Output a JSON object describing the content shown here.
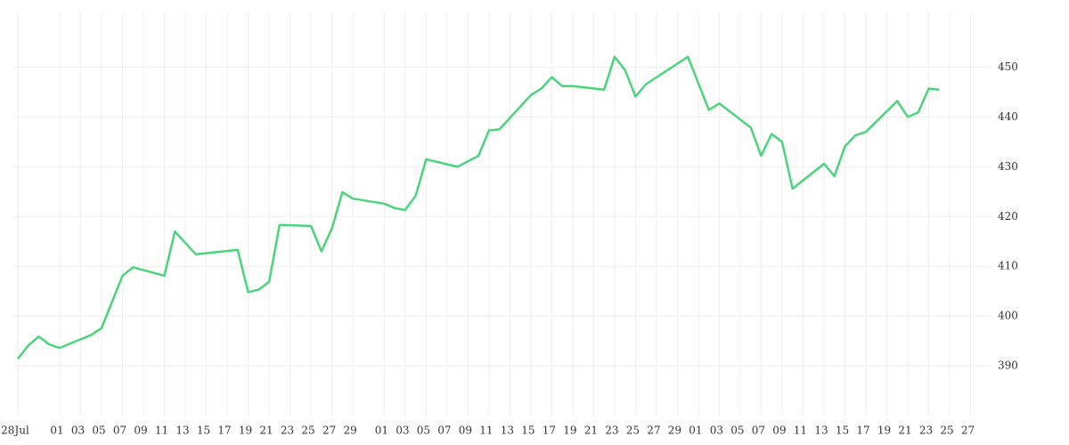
{
  "chart_data": {
    "type": "line",
    "x": [
      "07-28",
      "07-29",
      "07-30",
      "07-31",
      "08-01",
      "08-04",
      "08-05",
      "08-07",
      "08-08",
      "08-11",
      "08-12",
      "08-14",
      "08-18",
      "08-19",
      "08-20",
      "08-21",
      "08-22",
      "08-25",
      "08-26",
      "08-27",
      "08-28",
      "08-29",
      "09-01",
      "09-02",
      "09-03",
      "09-04",
      "09-05",
      "09-08",
      "09-09",
      "09-10",
      "09-11",
      "09-12",
      "09-15",
      "09-16",
      "09-17",
      "09-18",
      "09-19",
      "09-22",
      "09-23",
      "09-24",
      "09-25",
      "09-26",
      "09-30",
      "10-02",
      "10-03",
      "10-06",
      "10-07",
      "10-08",
      "10-09",
      "10-10",
      "10-13",
      "10-14",
      "10-15",
      "10-16",
      "10-17",
      "10-20",
      "10-21",
      "10-22",
      "10-23",
      "10-24"
    ],
    "series": [
      {
        "color": "#4cd47c",
        "values": [
          391.4,
          394.1,
          395.9,
          394.3,
          393.6,
          396.2,
          397.6,
          408.1,
          409.8,
          408.1,
          417.0,
          412.4,
          413.3,
          404.8,
          405.3,
          406.9,
          418.3,
          418.1,
          413.0,
          417.6,
          424.9,
          423.6,
          422.6,
          421.7,
          421.3,
          424.2,
          431.5,
          430.0,
          431.1,
          432.2,
          437.3,
          437.5,
          444.4,
          445.7,
          448.0,
          446.2,
          446.2,
          445.5,
          452.1,
          449.4,
          444.1,
          446.6,
          452.1,
          441.4,
          442.7,
          437.9,
          432.2,
          436.6,
          435.0,
          425.6,
          430.6,
          428.1,
          434.1,
          436.3,
          437.0,
          443.2,
          440.0,
          440.9,
          445.7,
          445.5
        ]
      }
    ],
    "xlim": [
      "07-28",
      "10-29"
    ],
    "xticks": [
      {
        "value": "07-28",
        "label": "28Jul"
      },
      {
        "value": "08-01",
        "label": "01"
      },
      {
        "value": "08-03",
        "label": "03"
      },
      {
        "value": "08-05",
        "label": "05"
      },
      {
        "value": "08-07",
        "label": "07"
      },
      {
        "value": "08-09",
        "label": "09"
      },
      {
        "value": "08-11",
        "label": "11"
      },
      {
        "value": "08-13",
        "label": "13"
      },
      {
        "value": "08-15",
        "label": "15"
      },
      {
        "value": "08-17",
        "label": "17"
      },
      {
        "value": "08-19",
        "label": "19"
      },
      {
        "value": "08-21",
        "label": "21"
      },
      {
        "value": "08-23",
        "label": "23"
      },
      {
        "value": "08-25",
        "label": "25"
      },
      {
        "value": "08-27",
        "label": "27"
      },
      {
        "value": "08-29",
        "label": "29"
      },
      {
        "value": "09-01",
        "label": "01"
      },
      {
        "value": "09-03",
        "label": "03"
      },
      {
        "value": "09-05",
        "label": "05"
      },
      {
        "value": "09-07",
        "label": "07"
      },
      {
        "value": "09-09",
        "label": "09"
      },
      {
        "value": "09-11",
        "label": "11"
      },
      {
        "value": "09-13",
        "label": "13"
      },
      {
        "value": "09-15",
        "label": "15"
      },
      {
        "value": "09-17",
        "label": "17"
      },
      {
        "value": "09-19",
        "label": "19"
      },
      {
        "value": "09-21",
        "label": "21"
      },
      {
        "value": "09-23",
        "label": "23"
      },
      {
        "value": "09-25",
        "label": "25"
      },
      {
        "value": "09-27",
        "label": "27"
      },
      {
        "value": "09-29",
        "label": "29"
      },
      {
        "value": "10-01",
        "label": "01"
      },
      {
        "value": "10-03",
        "label": "03"
      },
      {
        "value": "10-05",
        "label": "05"
      },
      {
        "value": "10-07",
        "label": "07"
      },
      {
        "value": "10-09",
        "label": "09"
      },
      {
        "value": "10-11",
        "label": "11"
      },
      {
        "value": "10-13",
        "label": "13"
      },
      {
        "value": "10-15",
        "label": "15"
      },
      {
        "value": "10-17",
        "label": "17"
      },
      {
        "value": "10-19",
        "label": "19"
      },
      {
        "value": "10-21",
        "label": "21"
      },
      {
        "value": "10-23",
        "label": "23"
      },
      {
        "value": "10-25",
        "label": "25"
      },
      {
        "value": "10-27",
        "label": "27"
      }
    ],
    "ylim": [
      380,
      461
    ],
    "yticks": [
      390,
      400,
      410,
      420,
      430,
      440,
      450
    ],
    "grid": true
  }
}
